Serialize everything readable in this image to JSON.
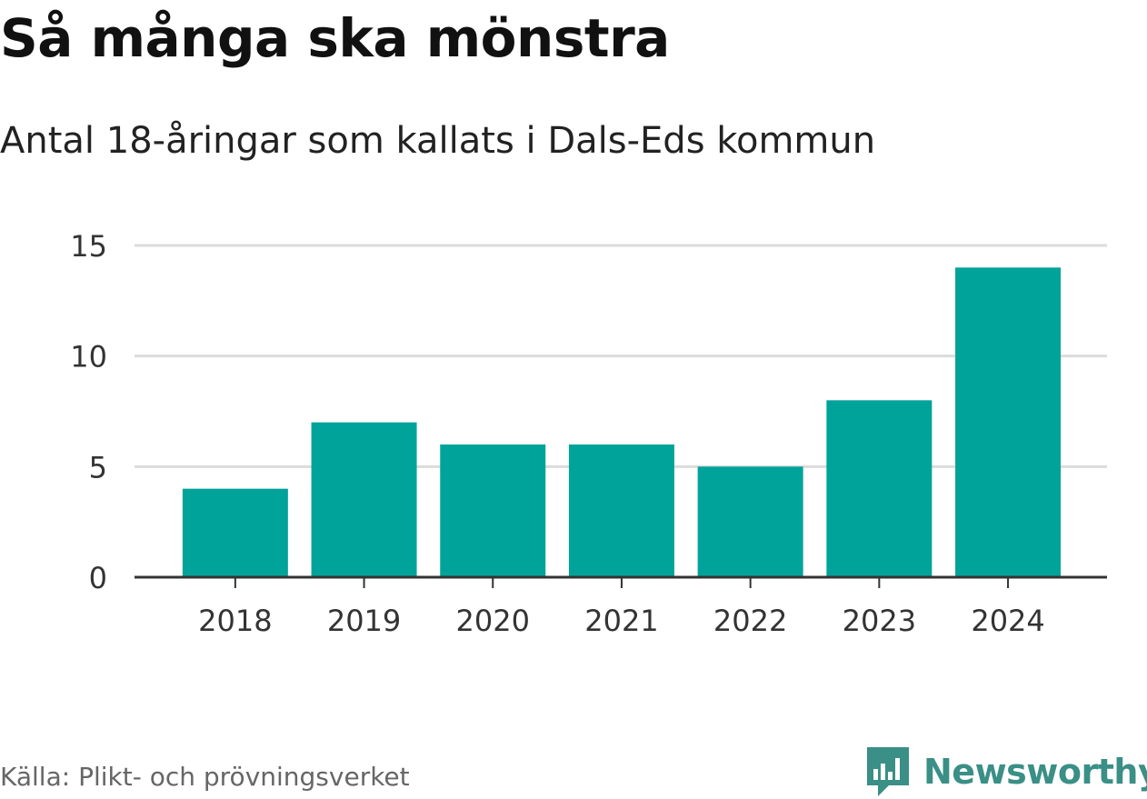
{
  "title": "Så många ska mönstra",
  "subtitle": "Antal 18-åringar som kallats i Dals-Eds kommun",
  "source": "Källa: Plikt- och prövningsverket",
  "brand": {
    "name": "Newsworthy",
    "icon": "bar-chart-bubble-icon",
    "color": "#3a8f86"
  },
  "chart_data": {
    "type": "bar",
    "categories": [
      "2018",
      "2019",
      "2020",
      "2021",
      "2022",
      "2023",
      "2024"
    ],
    "values": [
      4,
      7,
      6,
      6,
      5,
      8,
      14
    ],
    "ylim": [
      0,
      15
    ],
    "yticks": [
      "0",
      "5",
      "10",
      "15"
    ],
    "grid": true,
    "bar_color": "#00a39a",
    "grid_color": "#dcdcdc",
    "axis_color": "#333333"
  }
}
